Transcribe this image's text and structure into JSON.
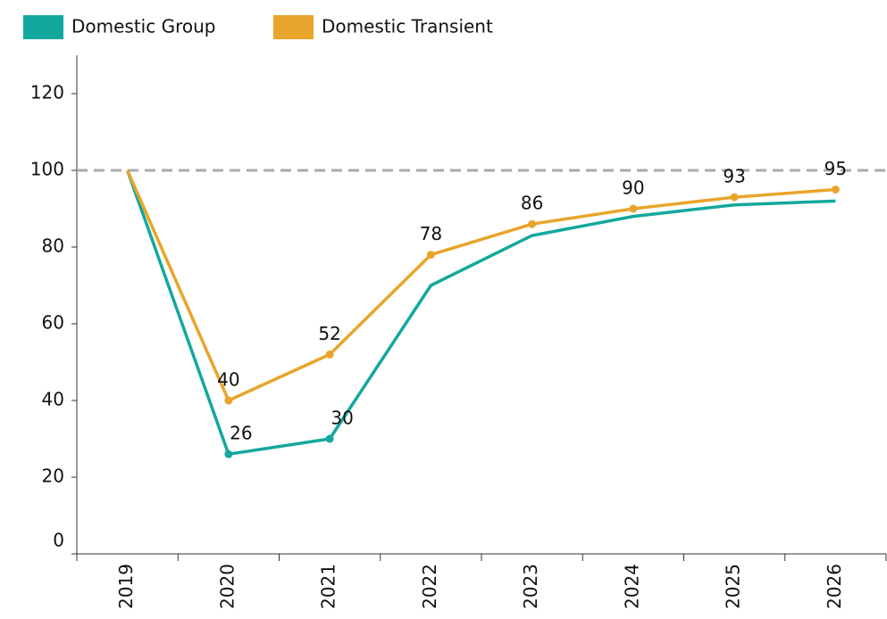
{
  "chart_data": {
    "type": "line",
    "categories": [
      "2019",
      "2020",
      "2021",
      "2022",
      "2023",
      "2024",
      "2025",
      "2026"
    ],
    "series": [
      {
        "name": "Domestic Group",
        "color": "#13a89e",
        "values": [
          100,
          26,
          30,
          70,
          83,
          88,
          91,
          92
        ],
        "value_labels": [
          null,
          "26",
          "30",
          null,
          null,
          null,
          null,
          null
        ]
      },
      {
        "name": "Domestic Transient",
        "color": "#e8a52b",
        "values": [
          100,
          40,
          52,
          78,
          86,
          90,
          93,
          95
        ],
        "value_labels": [
          null,
          "40",
          "52",
          "78",
          "86",
          "90",
          "93",
          "95"
        ]
      }
    ],
    "ylim": [
      0,
      130
    ],
    "yticks": [
      0,
      20,
      40,
      60,
      80,
      100,
      120
    ],
    "reference_line": 100,
    "legend": "top"
  }
}
